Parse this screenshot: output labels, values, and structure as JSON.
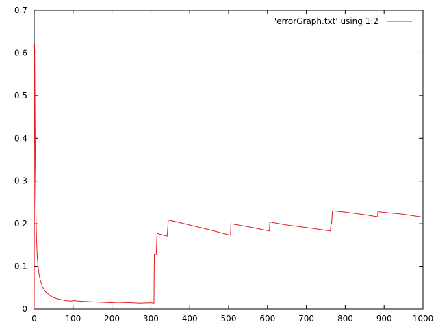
{
  "chart_data": {
    "type": "line",
    "title": "",
    "xlabel": "",
    "ylabel": "",
    "xlim": [
      0,
      1000
    ],
    "ylim": [
      0,
      0.7
    ],
    "xticks": [
      0,
      100,
      200,
      300,
      400,
      500,
      600,
      700,
      800,
      900,
      1000
    ],
    "yticks": [
      0,
      0.1,
      0.2,
      0.3,
      0.4,
      0.5,
      0.6,
      0.7
    ],
    "xtick_labels": [
      "0",
      "100",
      "200",
      "300",
      "400",
      "500",
      "600",
      "700",
      "800",
      "900",
      "1000"
    ],
    "ytick_labels": [
      "0",
      "0.1",
      "0.2",
      "0.3",
      "0.4",
      "0.5",
      "0.6",
      "0.7"
    ],
    "grid": false,
    "legend": {
      "position": "top-right",
      "entries": [
        "'errorGraph.txt' using 1:2"
      ]
    },
    "series": [
      {
        "name": "'errorGraph.txt' using 1:2",
        "color": "#e41a1c",
        "x": [
          0,
          1,
          2,
          3,
          4,
          5,
          6,
          7,
          8,
          10,
          12,
          15,
          20,
          25,
          30,
          40,
          50,
          60,
          70,
          80,
          90,
          100,
          101,
          110,
          150,
          200,
          210,
          250,
          270,
          300,
          308,
          309,
          310,
          314,
          316,
          318,
          342,
          345,
          400,
          450,
          505,
          506,
          550,
          605,
          606,
          650,
          700,
          762,
          763,
          765,
          767,
          770,
          800,
          850,
          883,
          884,
          950,
          1000
        ],
        "y": [
          0.0,
          0.62,
          0.45,
          0.33,
          0.25,
          0.2,
          0.16,
          0.14,
          0.12,
          0.1,
          0.085,
          0.07,
          0.055,
          0.046,
          0.04,
          0.032,
          0.027,
          0.024,
          0.022,
          0.02,
          0.019,
          0.019,
          0.02,
          0.019,
          0.017,
          0.015,
          0.016,
          0.015,
          0.014,
          0.015,
          0.014,
          0.128,
          0.128,
          0.128,
          0.178,
          0.177,
          0.171,
          0.209,
          0.197,
          0.186,
          0.173,
          0.2,
          0.193,
          0.183,
          0.204,
          0.197,
          0.191,
          0.183,
          0.197,
          0.2,
          0.229,
          0.23,
          0.227,
          0.221,
          0.216,
          0.228,
          0.222,
          0.215
        ]
      }
    ]
  }
}
